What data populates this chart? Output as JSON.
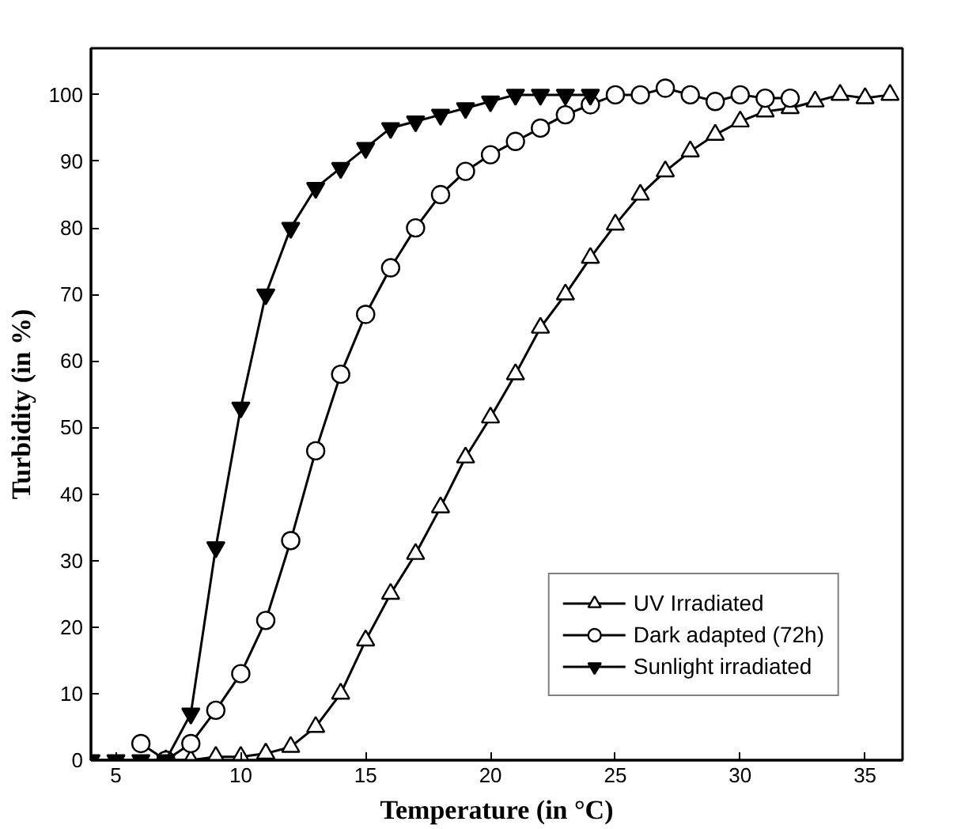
{
  "chart_data": {
    "type": "line",
    "xlabel": "Temperature (in °C)",
    "ylabel": "Turbidity (in %)",
    "xlim": [
      4,
      36.5
    ],
    "ylim": [
      0,
      107
    ],
    "xticks": [
      5,
      10,
      15,
      20,
      25,
      30,
      35
    ],
    "yticks": [
      0,
      10,
      20,
      30,
      40,
      50,
      60,
      70,
      80,
      90,
      100
    ],
    "grid": false,
    "legend": "bottom right",
    "line_style": "solid",
    "series": [
      {
        "name": "UV Irradiated",
        "color": "#000000",
        "marker": "triangle",
        "x": [
          7,
          8,
          9,
          10,
          11,
          12,
          13,
          14,
          15,
          16,
          17,
          18,
          19,
          20,
          21,
          22,
          23,
          24,
          25,
          26,
          27,
          28,
          29,
          30,
          31,
          32,
          33,
          34,
          35,
          36
        ],
        "values": [
          0,
          0,
          0.5,
          0.5,
          1,
          2,
          5,
          10,
          18,
          25,
          31,
          38,
          45.5,
          51.5,
          58,
          65,
          70,
          75.5,
          80.5,
          85,
          88.5,
          91.5,
          94,
          96,
          97.5,
          98,
          99,
          100,
          99.5,
          100
        ]
      },
      {
        "name": "Dark adapted (72h)",
        "color": "#000000",
        "marker": "circle",
        "x": [
          6,
          7,
          8,
          9,
          10,
          11,
          12,
          13,
          14,
          15,
          16,
          17,
          18,
          19,
          20,
          21,
          22,
          23,
          24,
          25,
          26,
          27,
          28,
          29,
          30,
          31,
          32
        ],
        "values": [
          2.5,
          0,
          2.5,
          7.5,
          13,
          21,
          33,
          46.5,
          58,
          67,
          74,
          80,
          85,
          88.5,
          91,
          93,
          95,
          97,
          98.5,
          100,
          100,
          101,
          100,
          99,
          100,
          99.5,
          99.5
        ]
      },
      {
        "name": "Sunlight irradiated",
        "color": "#000000",
        "marker": "triangle",
        "x": [
          4,
          5,
          6,
          7,
          8,
          9,
          10,
          11,
          12,
          13,
          14,
          15,
          16,
          17,
          18,
          19,
          20,
          21,
          22,
          23,
          24
        ],
        "values": [
          0,
          0,
          0,
          0,
          7,
          32,
          53,
          70,
          80,
          86,
          89,
          92,
          95,
          96,
          97,
          98,
          99,
          100,
          100,
          100,
          100
        ]
      }
    ]
  }
}
